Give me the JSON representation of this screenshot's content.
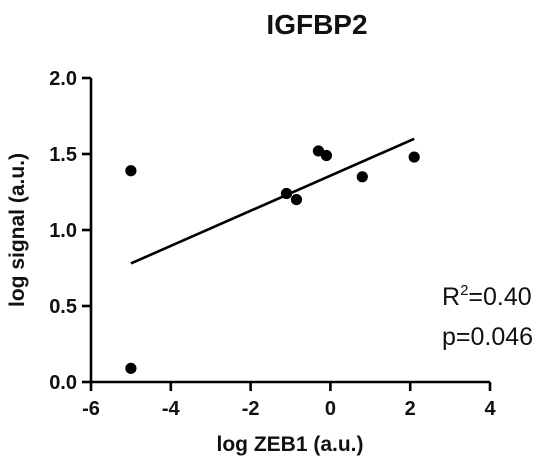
{
  "chart_data": {
    "type": "scatter",
    "title": "IGFBP2",
    "xlabel": "log ZEB1 (a.u.)",
    "ylabel": "log signal (a.u.)",
    "xlim": [
      -6,
      4
    ],
    "ylim": [
      0.0,
      2.0
    ],
    "xticks": [
      -6,
      -4,
      -2,
      0,
      2,
      4
    ],
    "yticks": [
      0.0,
      0.5,
      1.0,
      1.5,
      2.0
    ],
    "xtick_labels": [
      "-6",
      "-4",
      "-2",
      "0",
      "2",
      "4"
    ],
    "ytick_labels": [
      "0.0",
      "0.5",
      "1.0",
      "1.5",
      "2.0"
    ],
    "grid": false,
    "points": [
      {
        "x": -5.0,
        "y": 1.39
      },
      {
        "x": -5.0,
        "y": 0.09
      },
      {
        "x": -1.1,
        "y": 1.24
      },
      {
        "x": -0.85,
        "y": 1.2
      },
      {
        "x": -0.3,
        "y": 1.52
      },
      {
        "x": -0.1,
        "y": 1.49
      },
      {
        "x": 0.8,
        "y": 1.35
      },
      {
        "x": 2.1,
        "y": 1.48
      }
    ],
    "regression_line": {
      "x": [
        -5.0,
        2.1
      ],
      "y": [
        0.78,
        1.6
      ]
    },
    "annotations": {
      "r2_prefix": "R",
      "r2_sup": "2",
      "r2_suffix": "=0.40",
      "p_value": "p=0.046"
    }
  },
  "colors": {
    "points": "#000000",
    "line": "#000000",
    "axes": "#000000",
    "text": "#111111"
  }
}
